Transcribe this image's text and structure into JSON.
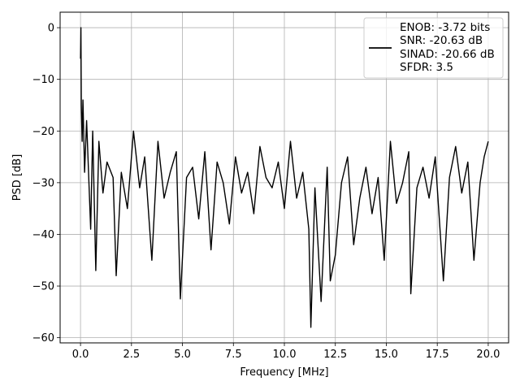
{
  "chart_data": {
    "type": "line",
    "title": "",
    "xlabel": "Frequency [MHz]",
    "ylabel": "PSD [dB]",
    "xlim": [
      -1.0,
      21.0
    ],
    "ylim": [
      -61.0,
      3.0
    ],
    "xticks": [
      0.0,
      2.5,
      5.0,
      7.5,
      10.0,
      12.5,
      15.0,
      17.5,
      20.0
    ],
    "xtick_labels": [
      "0.0",
      "2.5",
      "5.0",
      "7.5",
      "10.0",
      "12.5",
      "15.0",
      "17.5",
      "20.0"
    ],
    "yticks": [
      0,
      -10,
      -20,
      -30,
      -40,
      -50,
      -60
    ],
    "ytick_labels": [
      "0",
      "−10",
      "−20",
      "−30",
      "−40",
      "−50",
      "−60"
    ],
    "grid": true,
    "legend": {
      "position": "top-right",
      "lines": [
        "ENOB: -3.72 bits",
        "SNR: -20.63 dB",
        "SINAD: -20.66 dB",
        "SFDR: 3.5"
      ]
    },
    "series": [
      {
        "color": "#000000",
        "x": [
          0.0,
          0.02,
          0.04,
          0.08,
          0.12,
          0.2,
          0.3,
          0.5,
          0.6,
          0.75,
          0.9,
          1.1,
          1.3,
          1.6,
          1.75,
          2.0,
          2.3,
          2.6,
          2.9,
          3.15,
          3.5,
          3.8,
          4.1,
          4.4,
          4.7,
          4.9,
          5.2,
          5.5,
          5.8,
          6.1,
          6.4,
          6.7,
          7.0,
          7.3,
          7.6,
          7.9,
          8.2,
          8.5,
          8.8,
          9.1,
          9.4,
          9.7,
          10.0,
          10.3,
          10.6,
          10.9,
          11.2,
          11.3,
          11.5,
          11.8,
          12.1,
          12.25,
          12.5,
          12.8,
          13.1,
          13.4,
          13.7,
          14.0,
          14.3,
          14.6,
          14.9,
          15.2,
          15.5,
          15.8,
          16.1,
          16.2,
          16.5,
          16.8,
          17.1,
          17.4,
          17.8,
          18.1,
          18.4,
          18.7,
          19.0,
          19.3,
          19.6,
          19.8,
          20.0
        ],
        "y": [
          -6,
          0,
          -15,
          -22,
          -14,
          -28,
          -18,
          -39,
          -20,
          -47,
          -22,
          -32,
          -26,
          -29,
          -48,
          -28,
          -35,
          -20,
          -31,
          -25,
          -45,
          -22,
          -33,
          -28,
          -24,
          -52.5,
          -29,
          -27,
          -37,
          -24,
          -43,
          -26,
          -30,
          -38,
          -25,
          -32,
          -28,
          -36,
          -23,
          -29,
          -31,
          -26,
          -35,
          -22,
          -33,
          -28,
          -39,
          -58,
          -31,
          -53,
          -27,
          -49,
          -44,
          -30,
          -25,
          -42,
          -33,
          -27,
          -36,
          -29,
          -45,
          -22,
          -34,
          -30,
          -24,
          -51.5,
          -31,
          -27,
          -33,
          -25,
          -49,
          -29,
          -23,
          -32,
          -26,
          -45,
          -30,
          -25,
          -22
        ]
      }
    ]
  }
}
